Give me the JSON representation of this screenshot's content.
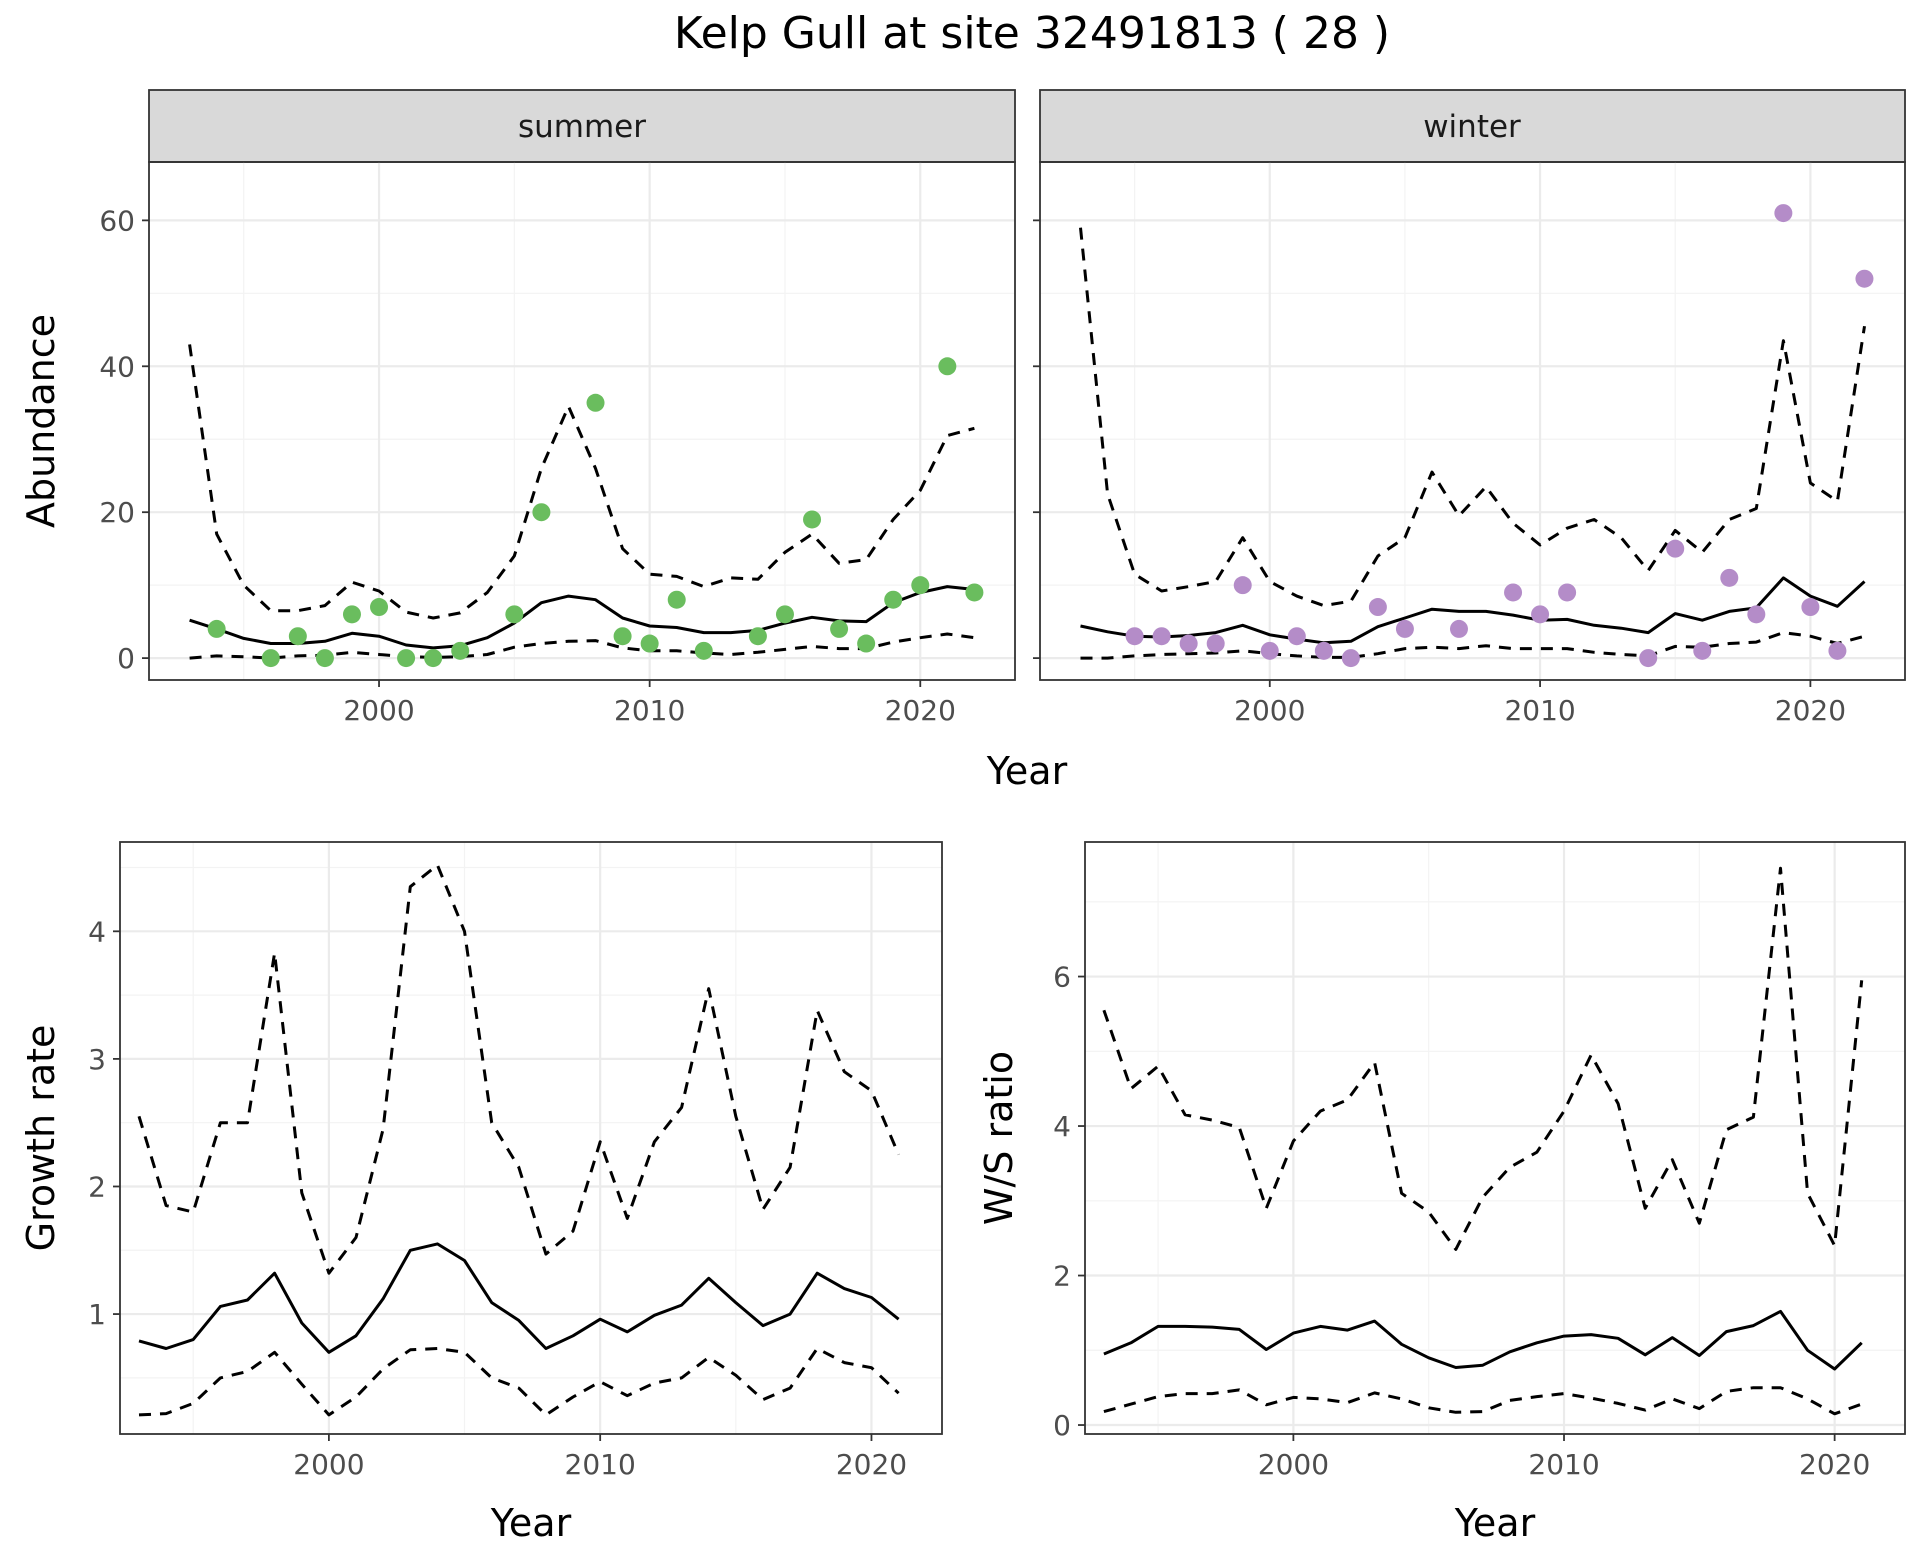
{
  "chart_data": {
    "title": "Kelp Gull at site 32491813 ( 28 )",
    "years": [
      1993,
      1994,
      1995,
      1996,
      1997,
      1998,
      1999,
      2000,
      2001,
      2002,
      2003,
      2004,
      2005,
      2006,
      2007,
      2008,
      2009,
      2010,
      2011,
      2012,
      2013,
      2014,
      2015,
      2016,
      2017,
      2018,
      2019,
      2020,
      2021,
      2022
    ],
    "abundance": {
      "type": "line+scatter",
      "ylabel": "Abundance",
      "xlabel": "Year",
      "ylim": [
        -3,
        68
      ],
      "xlim": [
        1991.5,
        2023.5
      ],
      "yticks": [
        0,
        20,
        40,
        60
      ],
      "xticks": [
        2000,
        2010,
        2020
      ],
      "grid": true,
      "panels": [
        {
          "label": "summer",
          "point_color": "#6ABD5E",
          "fit": [
            5.2,
            4,
            2.7,
            2,
            2,
            2.3,
            3.4,
            3,
            1.8,
            1.4,
            1.7,
            2.8,
            4.8,
            7.6,
            8.5,
            8,
            5.5,
            4.4,
            4.2,
            3.5,
            3.5,
            3.8,
            4.8,
            5.6,
            5.1,
            5,
            7.6,
            9,
            9.8,
            9.4
          ],
          "upper": [
            43,
            17,
            10,
            6.5,
            6.5,
            7.2,
            10.4,
            9.2,
            6.3,
            5.5,
            6.2,
            9,
            14,
            26,
            34.5,
            26,
            15,
            11.5,
            11.2,
            9.8,
            11,
            10.8,
            14.5,
            17,
            13,
            13.5,
            19,
            23,
            30.5,
            31.5
          ],
          "lower": [
            0,
            0.3,
            0.2,
            0,
            0.3,
            0.4,
            0.8,
            0.5,
            0.2,
            0.1,
            0.2,
            0.5,
            1.5,
            2,
            2.3,
            2.4,
            1.4,
            1,
            1,
            0.7,
            0.5,
            0.8,
            1.2,
            1.6,
            1.3,
            1.3,
            2.2,
            2.8,
            3.3,
            2.8
          ],
          "observations": {
            "x": [
              1994,
              1996,
              1997,
              1998,
              1999,
              2000,
              2001,
              2002,
              2003,
              2005,
              2006,
              2008,
              2009,
              2010,
              2011,
              2012,
              2014,
              2015,
              2016,
              2017,
              2018,
              2019,
              2020,
              2021,
              2022
            ],
            "y": [
              4,
              0,
              3,
              0,
              6,
              7,
              0,
              0,
              1,
              6,
              20,
              35,
              3,
              2,
              8,
              1,
              3,
              6,
              19,
              4,
              2,
              8,
              10,
              40,
              9
            ]
          }
        },
        {
          "label": "winter",
          "point_color": "#B48CC8",
          "fit": [
            4.4,
            3.6,
            3,
            2.9,
            3.1,
            3.5,
            4.5,
            3.2,
            2.6,
            2.1,
            2.3,
            4.3,
            5.5,
            6.7,
            6.4,
            6.4,
            5.9,
            5.2,
            5.3,
            4.5,
            4.1,
            3.5,
            6.1,
            5.2,
            6.4,
            6.9,
            11,
            8.5,
            7.1,
            10.5
          ],
          "upper": [
            59,
            22.5,
            11.5,
            9.2,
            9.8,
            10.5,
            16.5,
            10.5,
            8.5,
            7.2,
            7.8,
            14,
            16.5,
            25.5,
            19.5,
            23.5,
            18.5,
            15.5,
            17.8,
            19,
            16.5,
            12,
            17.5,
            14.5,
            19,
            20.5,
            43.5,
            24,
            21.5,
            45.5
          ],
          "lower": [
            0,
            0,
            0.3,
            0.5,
            0.6,
            0.7,
            1,
            0.6,
            0.3,
            0.1,
            0.1,
            0.6,
            1.3,
            1.5,
            1.3,
            1.7,
            1.3,
            1.3,
            1.3,
            0.8,
            0.5,
            0.3,
            1.6,
            1.5,
            2,
            2.2,
            3.5,
            3,
            2,
            3
          ],
          "observations": {
            "x": [
              1995,
              1996,
              1997,
              1998,
              1999,
              2000,
              2001,
              2002,
              2003,
              2004,
              2005,
              2007,
              2009,
              2010,
              2011,
              2014,
              2015,
              2016,
              2017,
              2018,
              2019,
              2020,
              2021,
              2022
            ],
            "y": [
              3,
              3,
              2,
              2,
              10,
              1,
              3,
              1,
              0,
              7,
              4,
              4,
              9,
              6,
              9,
              0,
              15,
              1,
              11,
              6,
              61,
              7,
              1,
              52
            ]
          }
        }
      ]
    },
    "growth": {
      "type": "line",
      "ylabel": "Growth rate",
      "xlabel": "Year",
      "ylim": [
        0.06,
        4.7
      ],
      "xlim": [
        1992.3,
        2022.6
      ],
      "yticks": [
        1,
        2,
        3,
        4
      ],
      "xticks": [
        2000,
        2010,
        2020
      ],
      "grid": true,
      "years": [
        1993,
        1994,
        1995,
        1996,
        1997,
        1998,
        1999,
        2000,
        2001,
        2002,
        2003,
        2004,
        2005,
        2006,
        2007,
        2008,
        2009,
        2010,
        2011,
        2012,
        2013,
        2014,
        2015,
        2016,
        2017,
        2018,
        2019,
        2020,
        2021
      ],
      "fit": [
        0.79,
        0.73,
        0.8,
        1.06,
        1.11,
        1.32,
        0.93,
        0.7,
        0.83,
        1.12,
        1.5,
        1.55,
        1.42,
        1.09,
        0.95,
        0.73,
        0.83,
        0.96,
        0.86,
        0.99,
        1.07,
        1.28,
        1.09,
        0.91,
        1.0,
        1.32,
        1.2,
        1.13,
        0.96
      ],
      "upper": [
        2.55,
        1.85,
        1.8,
        2.5,
        2.5,
        3.83,
        1.95,
        1.32,
        1.6,
        2.45,
        4.35,
        4.52,
        4.0,
        2.5,
        2.15,
        1.47,
        1.65,
        2.35,
        1.75,
        2.35,
        2.62,
        3.55,
        2.55,
        1.82,
        2.15,
        3.38,
        2.9,
        2.75,
        2.25
      ],
      "lower": [
        0.21,
        0.22,
        0.3,
        0.5,
        0.55,
        0.7,
        0.45,
        0.21,
        0.35,
        0.57,
        0.72,
        0.73,
        0.7,
        0.5,
        0.42,
        0.21,
        0.35,
        0.47,
        0.36,
        0.46,
        0.5,
        0.66,
        0.52,
        0.33,
        0.42,
        0.73,
        0.62,
        0.58,
        0.38
      ]
    },
    "ratio": {
      "type": "line",
      "ylabel": "W/S ratio",
      "xlabel": "Year",
      "ylim": [
        -0.12,
        7.8
      ],
      "xlim": [
        1992.3,
        2022.6
      ],
      "yticks": [
        0,
        2,
        4,
        6
      ],
      "xticks": [
        2000,
        2010,
        2020
      ],
      "grid": true,
      "years": [
        1993,
        1994,
        1995,
        1996,
        1997,
        1998,
        1999,
        2000,
        2001,
        2002,
        2003,
        2004,
        2005,
        2006,
        2007,
        2008,
        2009,
        2010,
        2011,
        2012,
        2013,
        2014,
        2015,
        2016,
        2017,
        2018,
        2019,
        2020,
        2021
      ],
      "fit": [
        0.95,
        1.1,
        1.32,
        1.32,
        1.31,
        1.28,
        1.01,
        1.23,
        1.32,
        1.27,
        1.39,
        1.08,
        0.9,
        0.77,
        0.8,
        0.98,
        1.1,
        1.19,
        1.21,
        1.16,
        0.94,
        1.17,
        0.93,
        1.25,
        1.33,
        1.52,
        1.0,
        0.75,
        1.1
      ],
      "upper": [
        5.55,
        4.5,
        4.8,
        4.15,
        4.08,
        3.98,
        2.9,
        3.8,
        4.2,
        4.35,
        4.85,
        3.1,
        2.85,
        2.35,
        3.05,
        3.45,
        3.65,
        4.2,
        4.95,
        4.3,
        2.9,
        3.55,
        2.7,
        3.95,
        4.12,
        7.45,
        3.1,
        2.4,
        5.95
      ],
      "lower": [
        0.18,
        0.28,
        0.38,
        0.42,
        0.42,
        0.47,
        0.27,
        0.37,
        0.35,
        0.3,
        0.43,
        0.35,
        0.23,
        0.17,
        0.18,
        0.33,
        0.38,
        0.42,
        0.36,
        0.29,
        0.2,
        0.35,
        0.22,
        0.45,
        0.5,
        0.5,
        0.35,
        0.15,
        0.28
      ]
    }
  }
}
